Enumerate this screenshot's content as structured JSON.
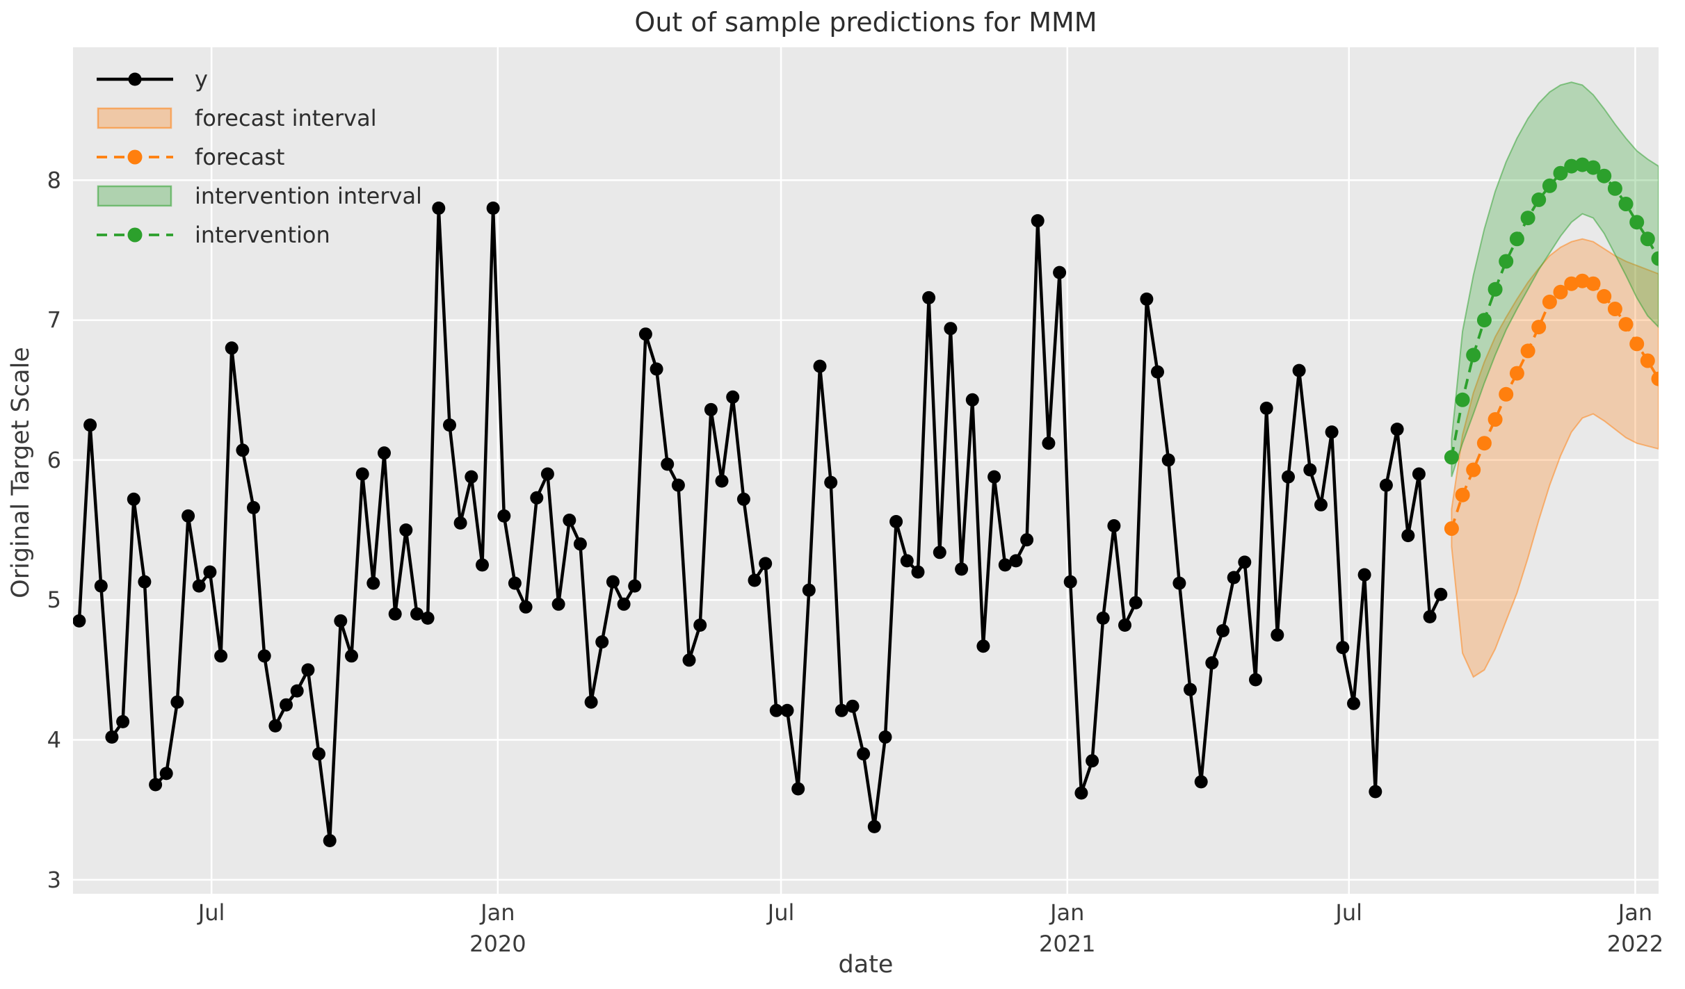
{
  "title": "Out of sample predictions for MMM",
  "xlabel": "date",
  "ylabel": "Original Target Scale",
  "colors": {
    "figure_background": "#ffffff",
    "plot_background": "#e9e9e9",
    "grid": "#ffffff",
    "text": "#3a3a3a",
    "y_series": "#000000",
    "forecast": "#ff7f0e",
    "intervention": "#2ca02c"
  },
  "legend": [
    {
      "label": "y",
      "swatch": "line-dot",
      "color": "#000000",
      "dashed": false
    },
    {
      "label": "forecast interval",
      "swatch": "band",
      "color": "#ff7f0e"
    },
    {
      "label": "forecast",
      "swatch": "line-dot",
      "color": "#ff7f0e",
      "dashed": true
    },
    {
      "label": "intervention interval",
      "swatch": "band",
      "color": "#2ca02c"
    },
    {
      "label": "intervention",
      "swatch": "line-dot",
      "color": "#2ca02c",
      "dashed": true
    }
  ],
  "chart_data": {
    "type": "line",
    "title": "Out of sample predictions for MMM",
    "xlabel": "date",
    "ylabel": "Original Target Scale",
    "grid": true,
    "legend_position": "upper left",
    "xlim": [
      "2019-04-03",
      "2022-01-16"
    ],
    "ylim": [
      2.9,
      8.95
    ],
    "y_ticks": [
      3,
      4,
      5,
      6,
      7,
      8
    ],
    "x_ticks": [
      {
        "date": "2019-07-01",
        "lines": [
          "Jul"
        ]
      },
      {
        "date": "2020-01-01",
        "lines": [
          "Jan",
          "2020"
        ]
      },
      {
        "date": "2020-07-01",
        "lines": [
          "Jul"
        ]
      },
      {
        "date": "2021-01-01",
        "lines": [
          "Jan",
          "2021"
        ]
      },
      {
        "date": "2021-07-01",
        "lines": [
          "Jul"
        ]
      },
      {
        "date": "2022-01-01",
        "lines": [
          "Jan",
          "2022"
        ]
      }
    ],
    "series": [
      {
        "name": "y",
        "style": "solid-dot",
        "color": "#000000",
        "start": "2019-04-07",
        "freq_days": 7,
        "values": [
          4.85,
          6.25,
          5.1,
          4.02,
          4.13,
          5.72,
          5.13,
          3.68,
          3.76,
          4.27,
          5.6,
          5.1,
          5.2,
          4.6,
          6.8,
          6.07,
          5.66,
          4.6,
          4.1,
          4.25,
          4.35,
          4.5,
          3.9,
          3.28,
          4.85,
          4.6,
          5.9,
          5.12,
          6.05,
          4.9,
          5.5,
          4.9,
          4.87,
          7.8,
          6.25,
          5.55,
          5.88,
          5.25,
          7.8,
          5.6,
          5.12,
          4.95,
          5.73,
          5.9,
          4.97,
          5.57,
          5.4,
          4.27,
          4.7,
          5.13,
          4.97,
          5.1,
          6.9,
          6.65,
          5.97,
          5.82,
          4.57,
          4.82,
          6.36,
          5.85,
          6.45,
          5.72,
          5.14,
          5.26,
          4.21,
          4.21,
          3.65,
          5.07,
          6.67,
          5.84,
          4.21,
          4.24,
          3.9,
          3.38,
          4.02,
          5.56,
          5.28,
          5.2,
          7.16,
          5.34,
          6.94,
          5.22,
          6.43,
          4.67,
          5.88,
          5.25,
          5.28,
          5.43,
          7.71,
          6.12,
          7.34,
          5.13,
          3.62,
          3.85,
          4.87,
          5.53,
          4.82,
          4.98,
          7.15,
          6.63,
          6.0,
          5.12,
          4.36,
          3.7,
          4.55,
          4.78,
          5.16,
          5.27,
          4.43,
          6.37,
          4.75,
          5.88,
          6.64,
          5.93,
          5.68,
          6.2,
          4.66,
          4.26,
          5.18,
          3.63,
          5.82,
          6.22,
          5.46,
          5.9,
          4.88,
          5.04
        ]
      },
      {
        "name": "forecast",
        "style": "dashed-dot",
        "color": "#ff7f0e",
        "band_name": "forecast interval",
        "start": "2021-09-05",
        "freq_days": 7,
        "values": [
          5.51,
          5.75,
          5.93,
          6.12,
          6.29,
          6.47,
          6.62,
          6.78,
          6.95,
          7.13,
          7.2,
          7.26,
          7.28,
          7.26,
          7.17,
          7.08,
          6.97,
          6.83,
          6.71,
          6.58
        ],
        "lower": [
          5.38,
          4.62,
          4.45,
          4.5,
          4.65,
          4.85,
          5.05,
          5.3,
          5.57,
          5.82,
          6.03,
          6.2,
          6.3,
          6.33,
          6.28,
          6.22,
          6.16,
          6.12,
          6.1,
          6.08
        ],
        "upper": [
          5.65,
          6.18,
          6.48,
          6.7,
          6.88,
          7.02,
          7.15,
          7.27,
          7.37,
          7.46,
          7.52,
          7.56,
          7.58,
          7.56,
          7.51,
          7.46,
          7.42,
          7.39,
          7.36,
          7.33
        ]
      },
      {
        "name": "intervention",
        "style": "dashed-dot",
        "color": "#2ca02c",
        "band_name": "intervention interval",
        "start": "2021-09-05",
        "freq_days": 7,
        "values": [
          6.02,
          6.43,
          6.75,
          7.0,
          7.22,
          7.42,
          7.58,
          7.73,
          7.86,
          7.96,
          8.05,
          8.1,
          8.11,
          8.09,
          8.03,
          7.94,
          7.83,
          7.7,
          7.58,
          7.44
        ],
        "lower": [
          5.88,
          6.12,
          6.33,
          6.55,
          6.75,
          6.93,
          7.08,
          7.22,
          7.36,
          7.48,
          7.6,
          7.7,
          7.76,
          7.73,
          7.62,
          7.47,
          7.32,
          7.16,
          7.03,
          6.95
        ],
        "upper": [
          6.15,
          6.92,
          7.32,
          7.65,
          7.92,
          8.13,
          8.3,
          8.44,
          8.55,
          8.63,
          8.68,
          8.7,
          8.68,
          8.61,
          8.51,
          8.4,
          8.3,
          8.21,
          8.15,
          8.1
        ]
      }
    ]
  }
}
